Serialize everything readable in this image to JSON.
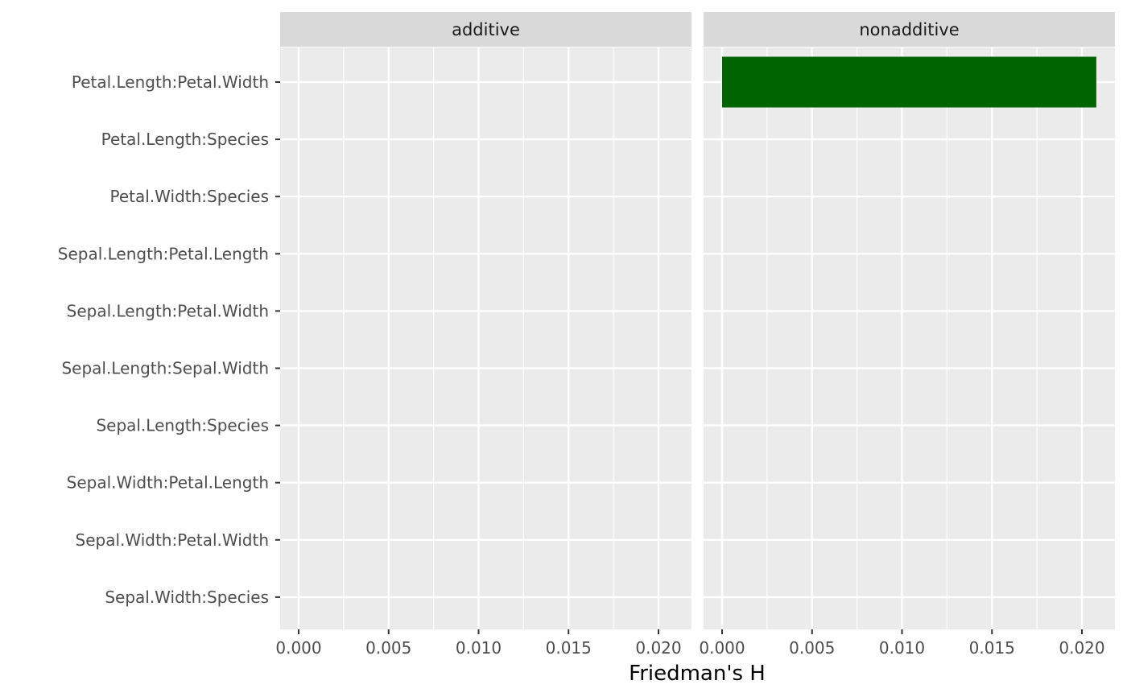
{
  "chart_data": {
    "type": "bar",
    "orientation": "horizontal",
    "xlabel": "Friedman's H",
    "ylabel": "",
    "xlim": [
      0,
      0.021
    ],
    "x_ticks": [
      "0.000",
      "0.005",
      "0.010",
      "0.015",
      "0.020"
    ],
    "x_tick_values": [
      0,
      0.005,
      0.01,
      0.015,
      0.02
    ],
    "categories": [
      "Petal.Length:Petal.Width",
      "Petal.Length:Species",
      "Petal.Width:Species",
      "Sepal.Length:Petal.Length",
      "Sepal.Length:Petal.Width",
      "Sepal.Length:Sepal.Width",
      "Sepal.Length:Species",
      "Sepal.Width:Petal.Length",
      "Sepal.Width:Petal.Width",
      "Sepal.Width:Species"
    ],
    "facets": [
      {
        "label": "additive",
        "values": [
          0,
          0,
          0,
          0,
          0,
          0,
          0,
          0,
          0,
          0
        ]
      },
      {
        "label": "nonadditive",
        "values": [
          0.0208,
          0,
          0,
          0,
          0,
          0,
          0,
          0,
          0,
          0
        ]
      }
    ],
    "bar_color": "#006400",
    "panel_background": "#ebebeb",
    "strip_background": "#d9d9d9",
    "grid_color": "#ffffff",
    "grid": true,
    "legend": "none"
  }
}
